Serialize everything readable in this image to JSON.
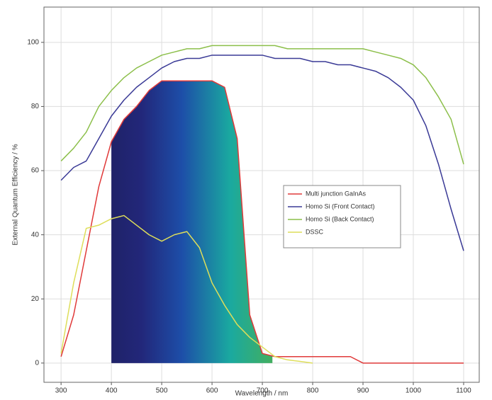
{
  "chart_data": {
    "type": "line",
    "xlabel": "Wavelength / nm",
    "ylabel": "External Quantum Efficiency / %",
    "x": [
      300,
      325,
      350,
      375,
      400,
      425,
      450,
      475,
      500,
      525,
      550,
      575,
      600,
      625,
      650,
      675,
      700,
      725,
      750,
      775,
      800,
      825,
      850,
      875,
      900,
      925,
      950,
      975,
      1000,
      1025,
      1050,
      1075,
      1100
    ],
    "series": [
      {
        "name": "Multi junction GaInAs",
        "color": "#e03a3a",
        "fill_range": [
          400,
          720
        ],
        "values": [
          2,
          15,
          35,
          55,
          69,
          76,
          80,
          85,
          88,
          88,
          88,
          88,
          88,
          86,
          70,
          15,
          3,
          2,
          2,
          2,
          2,
          2,
          2,
          2,
          0,
          0,
          0,
          0,
          0,
          0,
          0,
          0,
          0
        ]
      },
      {
        "name": "Homo Si (Front Contact)",
        "color": "#3a3a96",
        "values": [
          57,
          61,
          63,
          70,
          77,
          82,
          86,
          89,
          92,
          94,
          95,
          95,
          96,
          96,
          96,
          96,
          96,
          95,
          95,
          95,
          94,
          94,
          93,
          93,
          92,
          91,
          89,
          86,
          82,
          74,
          62,
          48,
          35
        ]
      },
      {
        "name": "Homo Si (Back Contact)",
        "color": "#8cbf4a",
        "values": [
          63,
          67,
          72,
          80,
          85,
          89,
          92,
          94,
          96,
          97,
          98,
          98,
          99,
          99,
          99,
          99,
          99,
          99,
          98,
          98,
          98,
          98,
          98,
          98,
          98,
          97,
          96,
          95,
          93,
          89,
          83,
          76,
          62
        ]
      },
      {
        "name": "DSSC",
        "color": "#dede5a",
        "values": [
          3,
          25,
          42,
          43,
          45,
          46,
          43,
          40,
          38,
          40,
          41,
          36,
          25,
          18,
          12,
          8,
          5,
          2,
          1,
          0.5,
          0,
          null,
          null,
          null,
          null,
          null,
          null,
          null,
          null,
          null,
          null,
          null,
          null
        ]
      }
    ],
    "xlim": [
      266,
      1131
    ],
    "ylim": [
      -6,
      111
    ],
    "xticks": [
      300,
      400,
      500,
      600,
      700,
      800,
      900,
      1000,
      1100
    ],
    "yticks": [
      0,
      20,
      40,
      60,
      80,
      100
    ],
    "grid": true,
    "legend": "right"
  }
}
